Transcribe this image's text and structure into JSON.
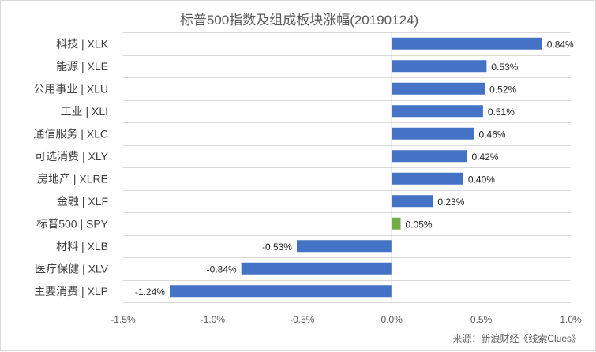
{
  "chart_data": {
    "type": "bar",
    "orientation": "horizontal",
    "title": "标普500指数及组成板块涨幅(20190124)",
    "categories": [
      "科技 | XLK",
      "能源 | XLE",
      "公用事业 | XLU",
      "工业 | XLI",
      "通信服务 | XLC",
      "可选消费 | XLY",
      "房地产 | XLRE",
      "金融 | XLF",
      "标普500 | SPY",
      "材料 | XLB",
      "医疗保健 | XLV",
      "主要消费 | XLP"
    ],
    "values": [
      0.84,
      0.53,
      0.52,
      0.51,
      0.46,
      0.42,
      0.4,
      0.23,
      0.05,
      -0.53,
      -0.84,
      -1.24
    ],
    "data_labels": [
      "0.84%",
      "0.53%",
      "0.52%",
      "0.51%",
      "0.46%",
      "0.42%",
      "0.40%",
      "0.23%",
      "0.05%",
      "-0.53%",
      "-0.84%",
      "-1.24%"
    ],
    "bar_colors": [
      "#4472c4",
      "#4472c4",
      "#4472c4",
      "#4472c4",
      "#4472c4",
      "#4472c4",
      "#4472c4",
      "#4472c4",
      "#70ad47",
      "#4472c4",
      "#4472c4",
      "#4472c4"
    ],
    "xlim": [
      -1.5,
      1.0
    ],
    "xticks": [
      -1.5,
      -1.0,
      -0.5,
      0.0,
      0.5,
      1.0
    ],
    "xtick_labels": [
      "-1.5%",
      "-1.0%",
      "-0.5%",
      "0.0%",
      "0.5%",
      "1.0%"
    ],
    "xlabel": "",
    "ylabel": "",
    "grid": "horizontal"
  },
  "source_note": "来源：新浪财经《线索Clues》"
}
